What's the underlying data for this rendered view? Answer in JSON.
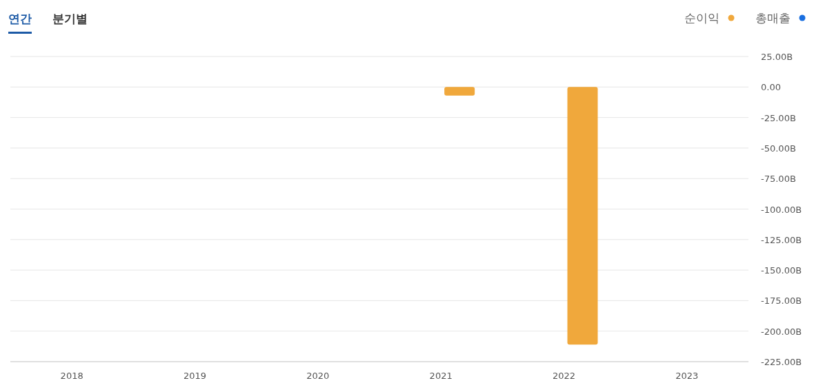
{
  "chart_data": {
    "type": "bar",
    "annotations": [
      "연간",
      "분기별"
    ],
    "categories": [
      "2018",
      "2019",
      "2020",
      "2021",
      "2022",
      "2023"
    ],
    "series": [
      {
        "name": "순이익",
        "color": "#f0a83c",
        "values": [
          null,
          null,
          null,
          -7,
          -211,
          null
        ]
      },
      {
        "name": "총매출",
        "color": "#1a6fe0",
        "values": [
          null,
          null,
          null,
          null,
          null,
          null
        ]
      }
    ],
    "ylim": [
      -225,
      25
    ],
    "yticks": [
      {
        "value": 25,
        "label": "25.00B"
      },
      {
        "value": 0,
        "label": "0.00"
      },
      {
        "value": -25,
        "label": "-25.00B"
      },
      {
        "value": -50,
        "label": "-50.00B"
      },
      {
        "value": -75,
        "label": "-75.00B"
      },
      {
        "value": -100,
        "label": "-100.00B"
      },
      {
        "value": -125,
        "label": "-125.00B"
      },
      {
        "value": -150,
        "label": "-150.00B"
      },
      {
        "value": -175,
        "label": "-175.00B"
      },
      {
        "value": -200,
        "label": "-200.00B"
      },
      {
        "value": -225,
        "label": "-225.00B"
      }
    ],
    "grid": "y",
    "legend": "top right"
  }
}
